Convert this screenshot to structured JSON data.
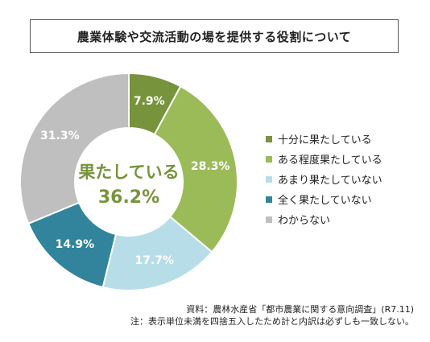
{
  "title": "農業体験や交流活動の場を提供する役割について",
  "chart_data": {
    "type": "pie",
    "variant": "donut",
    "slices": [
      {
        "label": "十分に果たしている",
        "value": 7.9,
        "value_label": "7.9%",
        "color": "#77933c"
      },
      {
        "label": "ある程度果たしている",
        "value": 28.3,
        "value_label": "28.3%",
        "color": "#9bbb59"
      },
      {
        "label": "あまり果たしていない",
        "value": 17.7,
        "value_label": "17.7%",
        "color": "#b7dee8"
      },
      {
        "label": "全く果たしていない",
        "value": 14.9,
        "value_label": "14.9%",
        "color": "#31849b"
      },
      {
        "label": "わからない",
        "value": 31.3,
        "value_label": "31.3%",
        "color": "#bfbfbf"
      }
    ],
    "center_label": "果たしている",
    "center_value": "36.2%",
    "center_color": "#77933c",
    "legend_position": "right"
  },
  "source": {
    "line1": "資料：農林水産省「都市農業に関する意向調査」(R7.11)",
    "line2": "注：表示単位未満を四捨五入したため計と内訳は必ずしも一致しない。"
  }
}
